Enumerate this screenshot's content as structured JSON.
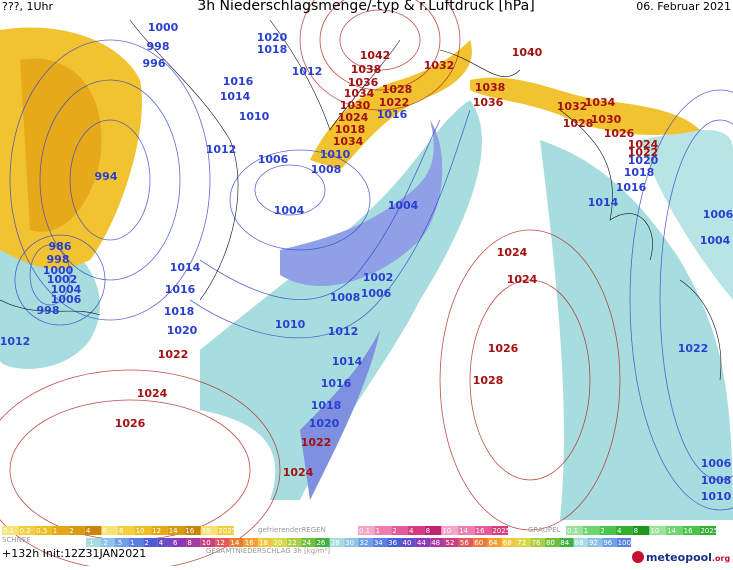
{
  "header": {
    "left": "???, 1Uhr",
    "title": "3h Niederschlagsmenge/-typ & r.Luftdruck [hPa]",
    "date": "06. Februar 2021"
  },
  "low_color": "#2a3fd0",
  "high_color": "#a3100f",
  "low_labels": [
    1000,
    998,
    996,
    1020,
    1018,
    1012,
    1016,
    1014,
    1010,
    1012,
    1006,
    1008,
    1004,
    994,
    1004,
    986,
    998,
    1000,
    1002,
    1004,
    1006,
    998,
    1012,
    1014,
    1016,
    1018,
    1020,
    1010,
    1008,
    1002,
    1006,
    1012,
    1014,
    1016,
    1018,
    1020,
    1016,
    1010,
    1006,
    1004,
    1022,
    1006,
    1008,
    1010,
    1016,
    1014,
    1018,
    1020
  ],
  "high_labels": [
    1042,
    1038,
    1036,
    1034,
    1030,
    1024,
    1028,
    1022,
    1018,
    1034,
    1032,
    1040,
    1038,
    1036,
    1032,
    1034,
    1030,
    1028,
    1026,
    1024,
    1022,
    1024,
    1024,
    1026,
    1028,
    1022,
    1024,
    1026,
    1022,
    1024
  ],
  "legend": {
    "snow": {
      "name": "SCHNEE",
      "labels": [
        "0.1",
        "0.2",
        "0.5",
        "1",
        "2",
        "4",
        "6",
        "8",
        "10",
        "12",
        "14",
        "16",
        "18",
        "2025+"
      ]
    },
    "freezing": {
      "name": "gefrierenderREGEN",
      "labels": [
        "0.1",
        "1",
        "2",
        "4",
        "8",
        "10",
        "14",
        "16",
        "2025+"
      ]
    },
    "graupel": {
      "name": "GRAUPEL",
      "labels": [
        "0.1",
        "1",
        "2",
        "4",
        "8",
        "10",
        "14",
        "16",
        "2025+"
      ]
    },
    "total": {
      "name": "GESAMTNIEDERSCHLAG 3h [kg/m²]",
      "labels": [
        ".1",
        ".2",
        ".5",
        "1",
        "2",
        "4",
        "6",
        "8",
        "10",
        "12",
        "14",
        "16",
        "18",
        "20",
        "22",
        "24",
        "26",
        "28",
        "30",
        "32",
        "34",
        "36",
        "40",
        "44",
        "48",
        "52",
        "56",
        "60",
        "64",
        "68",
        "72",
        "76",
        "80",
        "84",
        "88",
        "92",
        "96",
        "100"
      ]
    }
  },
  "footer": {
    "run": "+132h Init:12Z31JAN2021",
    "brand": "meteopool",
    "domain": ".org"
  }
}
